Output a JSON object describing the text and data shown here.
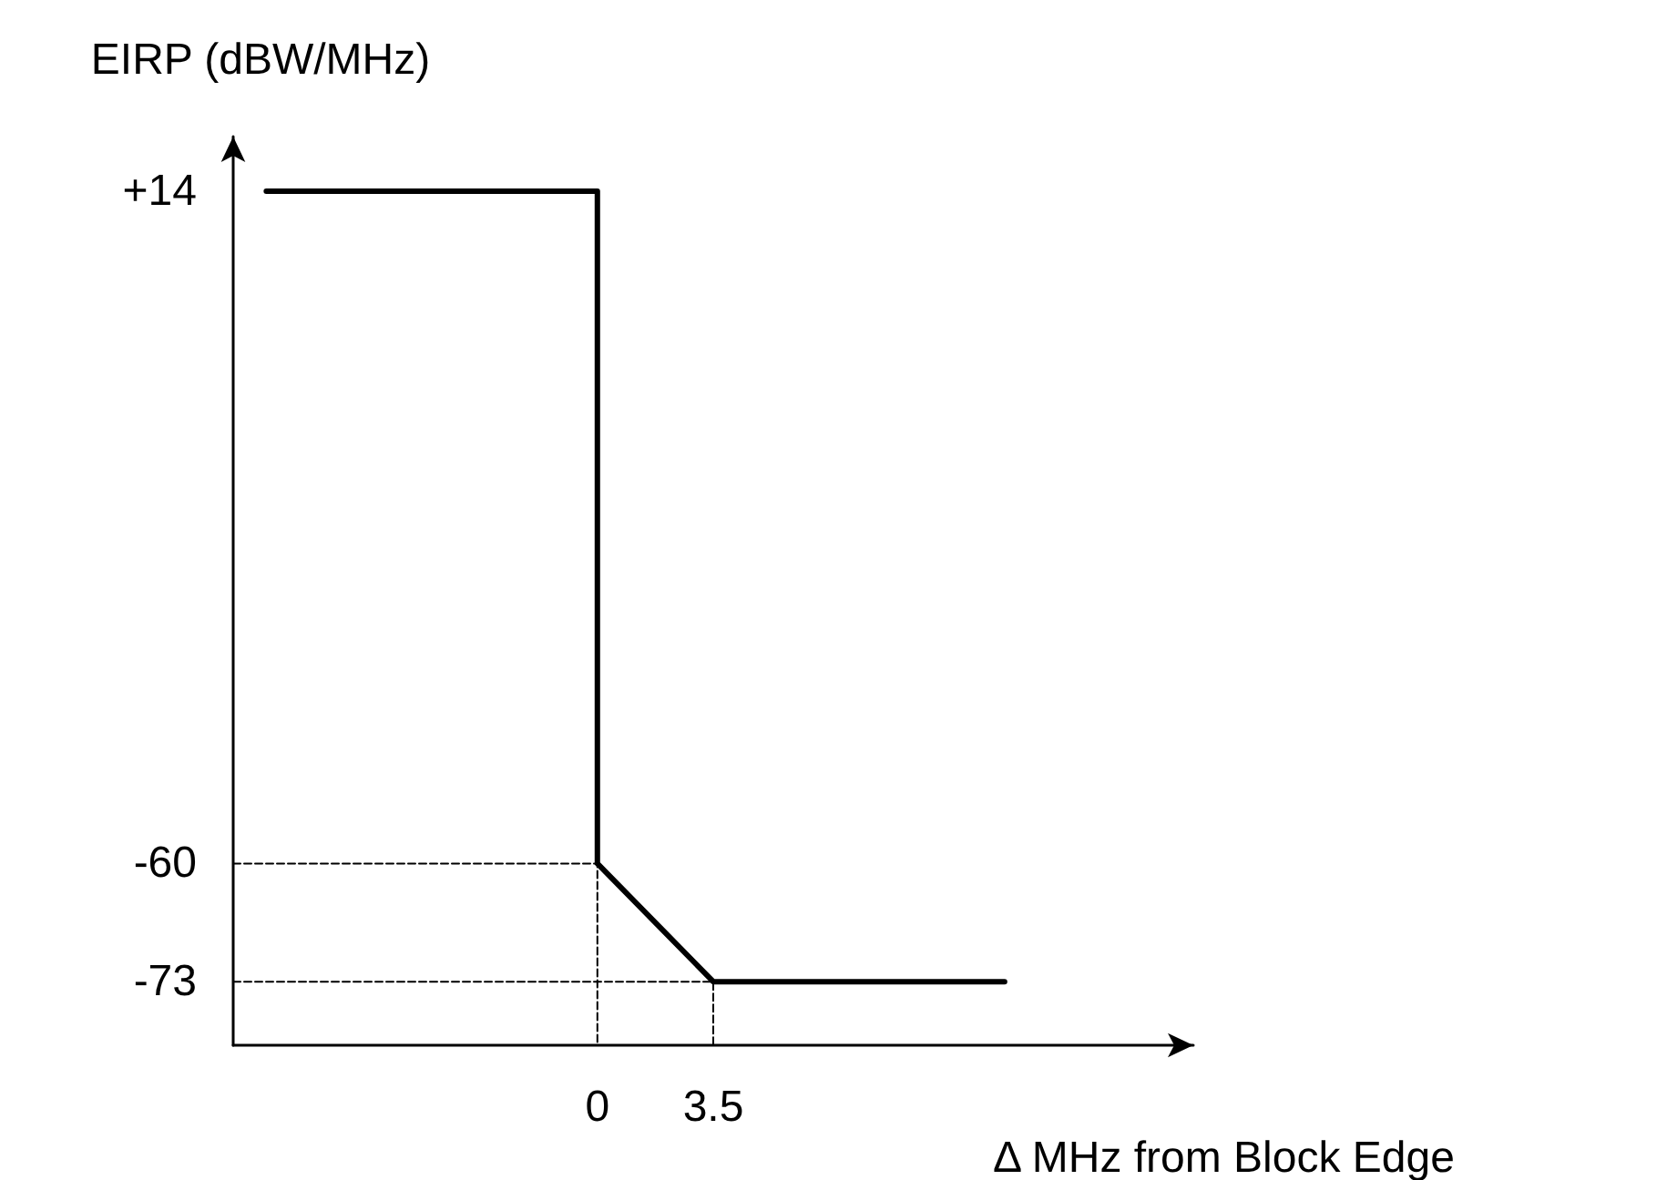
{
  "chart_data": {
    "type": "line",
    "xlabel": "Δ MHz from Block Edge",
    "ylabel": "EIRP (dBW/MHz)",
    "xlim": [
      -11,
      18
    ],
    "xticks": [
      0,
      3.5
    ],
    "ylim": [
      -80,
      20
    ],
    "yticks": [
      {
        "value": 14,
        "label": "+14"
      },
      -60,
      -73
    ],
    "grid": false,
    "marker": "none",
    "series": [
      {
        "color": "#000000",
        "x": [
          -10,
          0,
          0,
          3.5,
          12.3
        ],
        "values": [
          14,
          14,
          -60,
          -73,
          -73
        ],
        "line_style": "solid"
      },
      {
        "color": "#000000",
        "x": [
          -11,
          0,
          0
        ],
        "values": [
          -60,
          -60,
          -80
        ],
        "line_style": "dashed"
      },
      {
        "color": "#000000",
        "x": [
          -11,
          3.5,
          3.5
        ],
        "values": [
          -73,
          -73,
          -80
        ],
        "line_style": "dashed"
      }
    ]
  }
}
